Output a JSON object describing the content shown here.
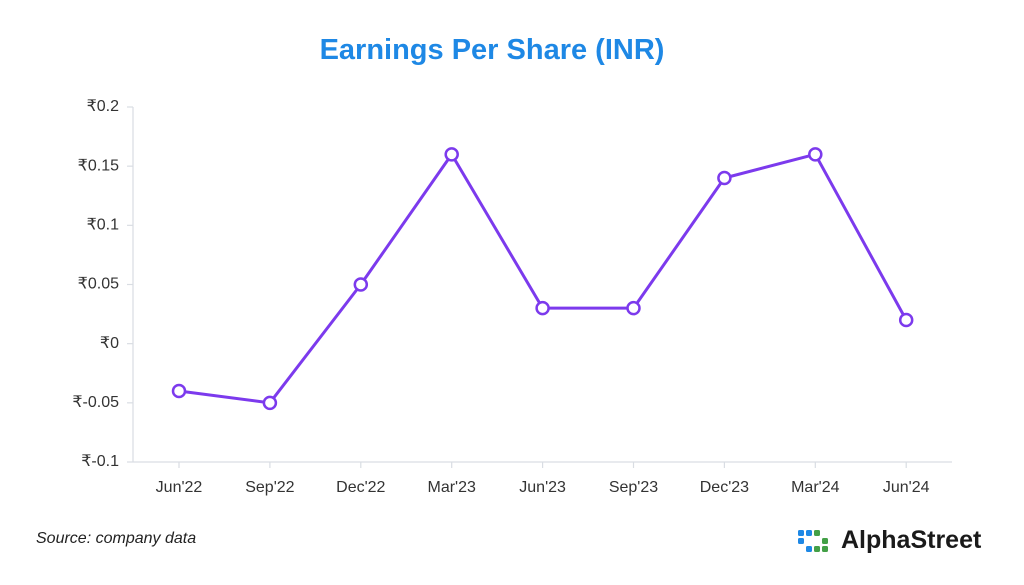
{
  "title": "Earnings Per Share (INR)",
  "source": "Source: company data",
  "brand": {
    "name": "AlphaStreet",
    "icon": "alphastreet-logo-icon",
    "colors": [
      "#1e88e5",
      "#43a047"
    ]
  },
  "chart_data": {
    "type": "line",
    "title": "Earnings Per Share (INR)",
    "xlabel": "",
    "ylabel": "",
    "categories": [
      "Jun'22",
      "Sep'22",
      "Dec'22",
      "Mar'23",
      "Jun'23",
      "Sep'23",
      "Dec'23",
      "Mar'24",
      "Jun'24"
    ],
    "series": [
      {
        "values": [
          -0.04,
          -0.05,
          0.05,
          0.16,
          0.03,
          0.03,
          0.14,
          0.16,
          0.02
        ],
        "color": "#7c3aed"
      }
    ],
    "ylim": [
      -0.1,
      0.2
    ],
    "yticks": [
      0.2,
      0.15,
      0.1,
      0.05,
      0,
      -0.05,
      -0.1
    ],
    "ytick_labels": [
      "₹0.2",
      "₹0.15",
      "₹0.1",
      "₹0.05",
      "₹0",
      "₹-0.05",
      "₹-0.1"
    ],
    "grid": false,
    "legend": "none",
    "marker": "hollow-circle"
  }
}
